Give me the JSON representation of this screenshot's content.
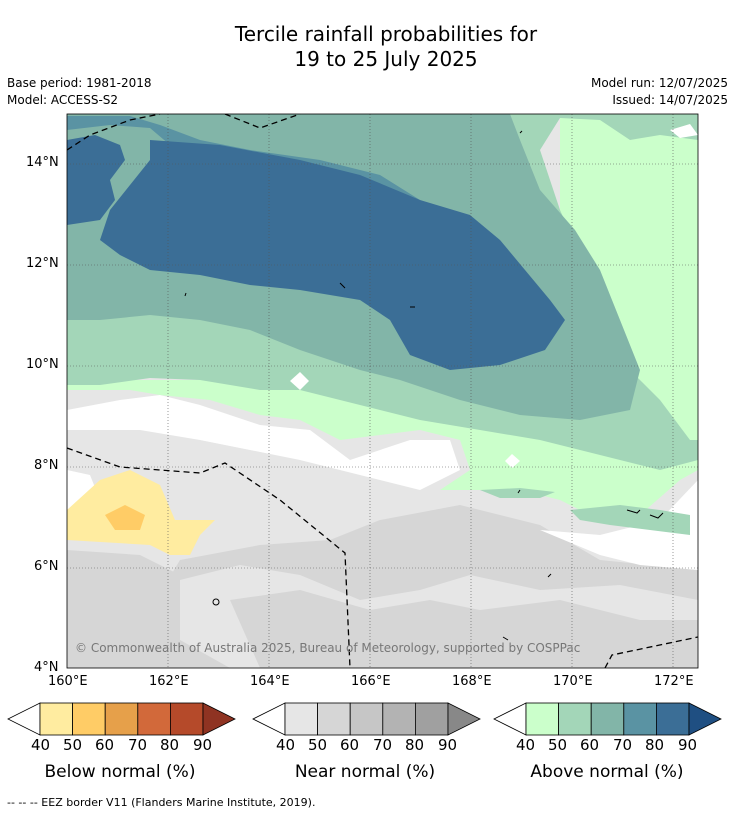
{
  "title_line1": "Tercile rainfall probabilities for",
  "title_line2": "19 to 25 July 2025",
  "base_period": "Base period: 1981-2018",
  "model": "Model: ACCESS-S2",
  "model_run": "Model run: 12/07/2025",
  "issued": "Issued: 14/07/2025",
  "copyright": "© Commonwealth of Australia 2025, Bureau of Meteorology, supported by COSPPac",
  "lat_labels": [
    "14°N",
    "12°N",
    "10°N",
    "8°N",
    "6°N",
    "4°N"
  ],
  "lon_labels": [
    "160°E",
    "162°E",
    "164°E",
    "166°E",
    "168°E",
    "170°E",
    "172°E"
  ],
  "colorbars": [
    {
      "title": "Below normal (%)",
      "ticks": [
        "40",
        "50",
        "60",
        "70",
        "80",
        "90"
      ],
      "colors": [
        "#ffeca0",
        "#ffcc66",
        "#e6a04a",
        "#d2693a",
        "#b54a2a",
        "#8f3322"
      ]
    },
    {
      "title": "Near normal (%)",
      "ticks": [
        "40",
        "50",
        "60",
        "70",
        "80",
        "90"
      ],
      "colors": [
        "#e6e6e6",
        "#d6d6d6",
        "#c6c6c6",
        "#b3b3b3",
        "#a0a0a0",
        "#888888"
      ]
    },
    {
      "title": "Above normal (%)",
      "ticks": [
        "40",
        "50",
        "60",
        "70",
        "80",
        "90"
      ],
      "colors": [
        "#cbffcb",
        "#a3d6b8",
        "#82b5a8",
        "#5a93a3",
        "#3b6e96",
        "#1f4f82"
      ]
    }
  ],
  "footer": "--  --  -- EEZ border V11 (Flanders Marine Institute, 2019)."
}
